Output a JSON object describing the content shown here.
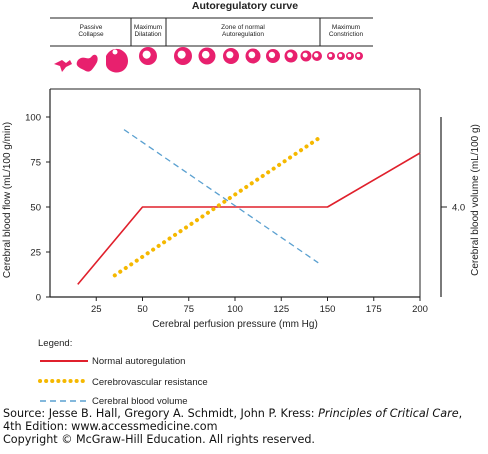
{
  "figure": {
    "header_title": "Autoregulatory curve",
    "phases": [
      {
        "label_lines": [
          "Passive",
          "Collapse"
        ]
      },
      {
        "label_lines": [
          "Maximum",
          "Dilatation"
        ]
      },
      {
        "label_lines": [
          "Zone of normal",
          "Autoregulation"
        ]
      },
      {
        "label_lines": [
          "Maximum",
          "Constriction"
        ]
      }
    ],
    "legend": {
      "title": "Legend:",
      "items": [
        {
          "label": "Normal autoregulation",
          "color": "#e0202c",
          "style": "solid"
        },
        {
          "label": "Cerebrovascular resistance",
          "color": "#f5b800",
          "style": "dotted"
        },
        {
          "label": "Cerebral blood volume",
          "color": "#5aa0d0",
          "style": "dashed"
        }
      ]
    },
    "vessel_colors": {
      "fill": "#e8206e",
      "highlight": "#ffffff"
    }
  },
  "chart_data": {
    "type": "line",
    "xlabel": "Cerebral perfusion pressure (mm Hg)",
    "ylabel": "Cerebral blood flow (mL/100 g/min)",
    "y2label": "Cerebral blood volume (mL/100 g)",
    "xlim": [
      0,
      200
    ],
    "ylim": [
      0,
      100
    ],
    "x_ticks": [
      25,
      50,
      75,
      100,
      125,
      150,
      175,
      200
    ],
    "y_ticks": [
      0,
      25,
      50,
      75,
      100
    ],
    "x_tick_labels": [
      "25",
      "50",
      "75",
      "100",
      "125",
      "150",
      "175",
      "200"
    ],
    "y_tick_labels": [
      "0",
      "25",
      "50",
      "75",
      "100"
    ],
    "y2_tick_label": "4.0",
    "y2_tick_at": 50,
    "grid": false,
    "series": [
      {
        "name": "Normal autoregulation",
        "x": [
          15,
          50,
          150,
          200
        ],
        "y": [
          7,
          50,
          50,
          80
        ]
      },
      {
        "name": "Cerebrovascular resistance",
        "x": [
          35,
          145
        ],
        "y": [
          12,
          88
        ]
      },
      {
        "name": "Cerebral blood volume",
        "x": [
          40,
          145
        ],
        "y": [
          93,
          19
        ]
      }
    ]
  },
  "source": {
    "line1_prefix": "Source: Jesse B. Hall, Gregory A. Schmidt, John P. Kress: ",
    "book_title": "Principles of Critical Care",
    "line1_suffix": ",",
    "line2": "4th Edition: www.accessmedicine.com",
    "line3": "Copyright © McGraw-Hill Education. All rights reserved."
  }
}
